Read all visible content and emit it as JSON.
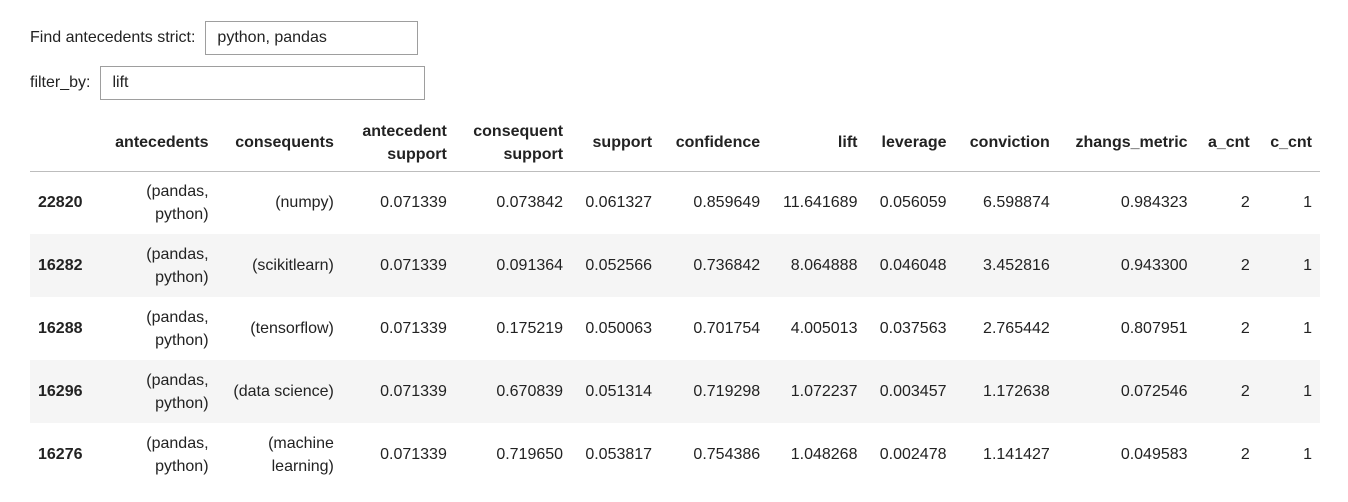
{
  "widgets": {
    "antecedents": {
      "label": "Find antecedents strict:",
      "value": "python, pandas"
    },
    "filter_by": {
      "label": "filter_by:",
      "value": "lift"
    }
  },
  "table": {
    "columns": [
      "",
      "antecedents",
      "consequents",
      "antecedent support",
      "consequent support",
      "support",
      "confidence",
      "lift",
      "leverage",
      "conviction",
      "zhangs_metric",
      "a_cnt",
      "c_cnt"
    ],
    "column_lines": [
      [
        ""
      ],
      [
        "antecedents"
      ],
      [
        "consequents"
      ],
      [
        "antecedent",
        "support"
      ],
      [
        "consequent",
        "support"
      ],
      [
        "support"
      ],
      [
        "confidence"
      ],
      [
        "lift"
      ],
      [
        "leverage"
      ],
      [
        "conviction"
      ],
      [
        "zhangs_metric"
      ],
      [
        "a_cnt"
      ],
      [
        "c_cnt"
      ]
    ],
    "rows": [
      {
        "index": "22820",
        "antecedents": [
          "(pandas,",
          "python)"
        ],
        "consequents": [
          "(numpy)"
        ],
        "antecedent_support": "0.071339",
        "consequent_support": "0.073842",
        "support": "0.061327",
        "confidence": "0.859649",
        "lift": "11.641689",
        "leverage": "0.056059",
        "conviction": "6.598874",
        "zhangs_metric": "0.984323",
        "a_cnt": "2",
        "c_cnt": "1"
      },
      {
        "index": "16282",
        "antecedents": [
          "(pandas,",
          "python)"
        ],
        "consequents": [
          "(scikitlearn)"
        ],
        "antecedent_support": "0.071339",
        "consequent_support": "0.091364",
        "support": "0.052566",
        "confidence": "0.736842",
        "lift": "8.064888",
        "leverage": "0.046048",
        "conviction": "3.452816",
        "zhangs_metric": "0.943300",
        "a_cnt": "2",
        "c_cnt": "1"
      },
      {
        "index": "16288",
        "antecedents": [
          "(pandas,",
          "python)"
        ],
        "consequents": [
          "(tensorflow)"
        ],
        "antecedent_support": "0.071339",
        "consequent_support": "0.175219",
        "support": "0.050063",
        "confidence": "0.701754",
        "lift": "4.005013",
        "leverage": "0.037563",
        "conviction": "2.765442",
        "zhangs_metric": "0.807951",
        "a_cnt": "2",
        "c_cnt": "1"
      },
      {
        "index": "16296",
        "antecedents": [
          "(pandas,",
          "python)"
        ],
        "consequents": [
          "(data science)"
        ],
        "antecedent_support": "0.071339",
        "consequent_support": "0.670839",
        "support": "0.051314",
        "confidence": "0.719298",
        "lift": "1.072237",
        "leverage": "0.003457",
        "conviction": "1.172638",
        "zhangs_metric": "0.072546",
        "a_cnt": "2",
        "c_cnt": "1"
      },
      {
        "index": "16276",
        "antecedents": [
          "(pandas,",
          "python)"
        ],
        "consequents": [
          "(machine",
          "learning)"
        ],
        "antecedent_support": "0.071339",
        "consequent_support": "0.719650",
        "support": "0.053817",
        "confidence": "0.754386",
        "lift": "1.048268",
        "leverage": "0.002478",
        "conviction": "1.141427",
        "zhangs_metric": "0.049583",
        "a_cnt": "2",
        "c_cnt": "1"
      }
    ]
  }
}
